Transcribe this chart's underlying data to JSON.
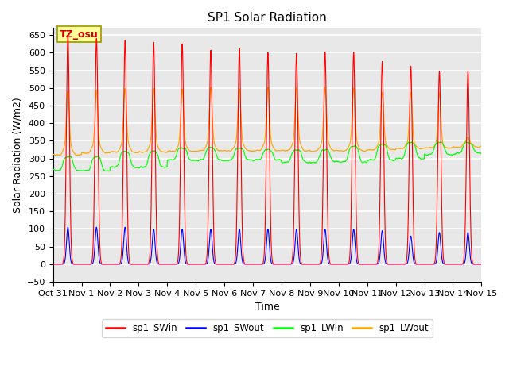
{
  "title": "SP1 Solar Radiation",
  "xlabel": "Time",
  "ylabel": "Solar Radiation (W/m2)",
  "ylim": [
    -50,
    670
  ],
  "yticks": [
    -50,
    0,
    50,
    100,
    150,
    200,
    250,
    300,
    350,
    400,
    450,
    500,
    550,
    600,
    650
  ],
  "xtick_labels": [
    "Oct 31",
    "Nov 1",
    "Nov 2",
    "Nov 3",
    "Nov 4",
    "Nov 5",
    "Nov 6",
    "Nov 7",
    "Nov 8",
    "Nov 9",
    "Nov 10",
    "Nov 11",
    "Nov 12",
    "Nov 13",
    "Nov 14",
    "Nov 15"
  ],
  "annotation_text": "TZ_osu",
  "annotation_facecolor": "#ffff99",
  "annotation_edgecolor": "#999900",
  "annotation_textcolor": "#cc0000",
  "background_color": "#e8e8e8",
  "grid_color": "white",
  "colors": {
    "sp1_SWin": "red",
    "sp1_SWout": "blue",
    "sp1_LWin": "#00ff00",
    "sp1_LWout": "orange"
  },
  "sw_peaks": [
    650,
    640,
    635,
    630,
    625,
    607,
    612,
    600,
    598,
    602,
    601,
    575,
    562,
    548,
    548
  ],
  "swout_peaks": [
    105,
    105,
    105,
    100,
    100,
    100,
    100,
    100,
    100,
    100,
    100,
    95,
    80,
    90,
    90
  ],
  "lw_in_night": [
    265,
    265,
    275,
    275,
    295,
    295,
    295,
    295,
    290,
    290,
    290,
    295,
    300,
    310,
    315
  ],
  "lw_in_day": [
    305,
    305,
    320,
    320,
    330,
    330,
    330,
    325,
    325,
    325,
    335,
    340,
    345,
    345,
    345
  ],
  "lw_out_night": [
    310,
    315,
    318,
    318,
    320,
    322,
    322,
    322,
    322,
    322,
    322,
    325,
    328,
    330,
    332
  ],
  "lw_out_day": [
    330,
    335,
    338,
    338,
    338,
    340,
    342,
    342,
    342,
    342,
    342,
    342,
    342,
    338,
    345
  ],
  "lw_out_peaks": [
    490,
    492,
    498,
    498,
    498,
    502,
    500,
    502,
    502,
    502,
    500,
    488,
    488,
    488,
    360
  ]
}
